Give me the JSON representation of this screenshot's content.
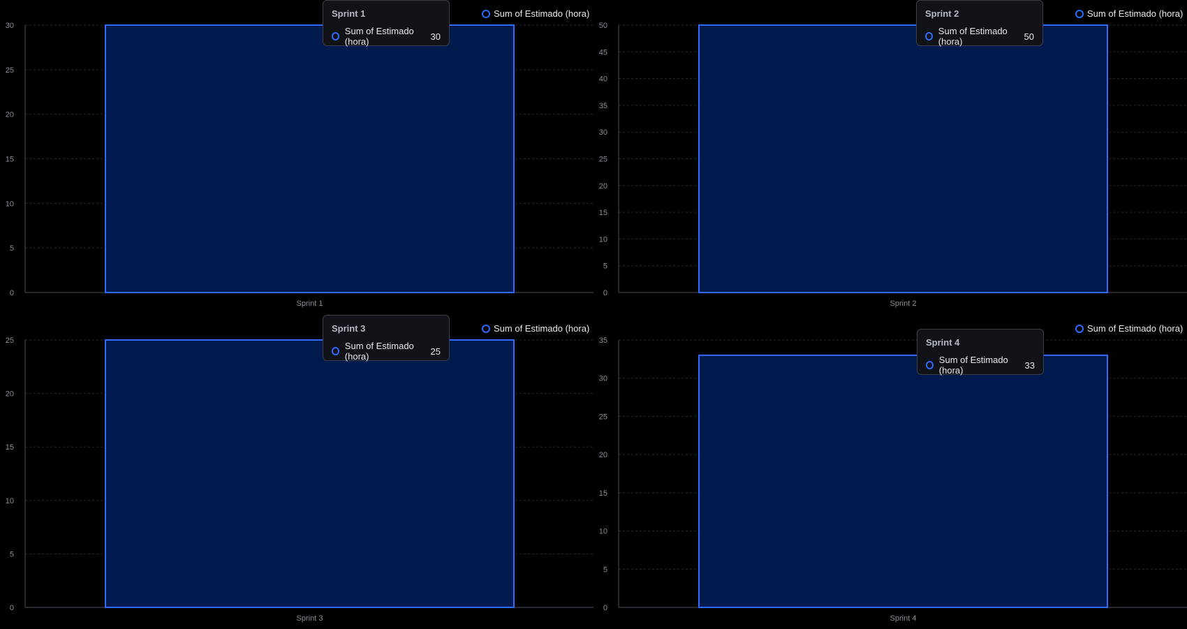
{
  "legend_label": "Sum of Estimado (hora)",
  "colors": {
    "bar_fill": "#001a4d",
    "bar_stroke": "#2f6bff",
    "grid": "#262a31",
    "axis": "#4a4f57"
  },
  "chart_data": [
    {
      "type": "bar",
      "categories": [
        "Sprint 1"
      ],
      "series": [
        {
          "name": "Sum of Estimado (hora)",
          "values": [
            30
          ]
        }
      ],
      "yticks": [
        "0",
        "5",
        "10",
        "15",
        "20",
        "25",
        "30"
      ],
      "ylim": [
        0,
        30
      ],
      "grid": true,
      "legend": "top-right",
      "tooltip": {
        "title": "Sprint 1",
        "label": "Sum of Estimado (hora)",
        "value": "30"
      }
    },
    {
      "type": "bar",
      "categories": [
        "Sprint 2"
      ],
      "series": [
        {
          "name": "Sum of Estimado (hora)",
          "values": [
            50
          ]
        }
      ],
      "yticks": [
        "0",
        "5",
        "10",
        "15",
        "20",
        "25",
        "30",
        "35",
        "40",
        "45",
        "50"
      ],
      "ylim": [
        0,
        50
      ],
      "grid": true,
      "legend": "top-right",
      "tooltip": {
        "title": "Sprint 2",
        "label": "Sum of Estimado (hora)",
        "value": "50"
      }
    },
    {
      "type": "bar",
      "categories": [
        "Sprint 3"
      ],
      "series": [
        {
          "name": "Sum of Estimado (hora)",
          "values": [
            25
          ]
        }
      ],
      "yticks": [
        "0",
        "5",
        "10",
        "15",
        "20",
        "25"
      ],
      "ylim": [
        0,
        25
      ],
      "grid": true,
      "legend": "top-right",
      "tooltip": {
        "title": "Sprint 3",
        "label": "Sum of Estimado (hora)",
        "value": "25"
      }
    },
    {
      "type": "bar",
      "categories": [
        "Sprint 4"
      ],
      "series": [
        {
          "name": "Sum of Estimado (hora)",
          "values": [
            33
          ]
        }
      ],
      "yticks": [
        "0",
        "5",
        "10",
        "15",
        "20",
        "25",
        "30",
        "35"
      ],
      "ylim": [
        0,
        35
      ],
      "grid": true,
      "legend": "top-right",
      "tooltip": {
        "title": "Sprint 4",
        "label": "Sum of Estimado (hora)",
        "value": "33"
      }
    }
  ]
}
